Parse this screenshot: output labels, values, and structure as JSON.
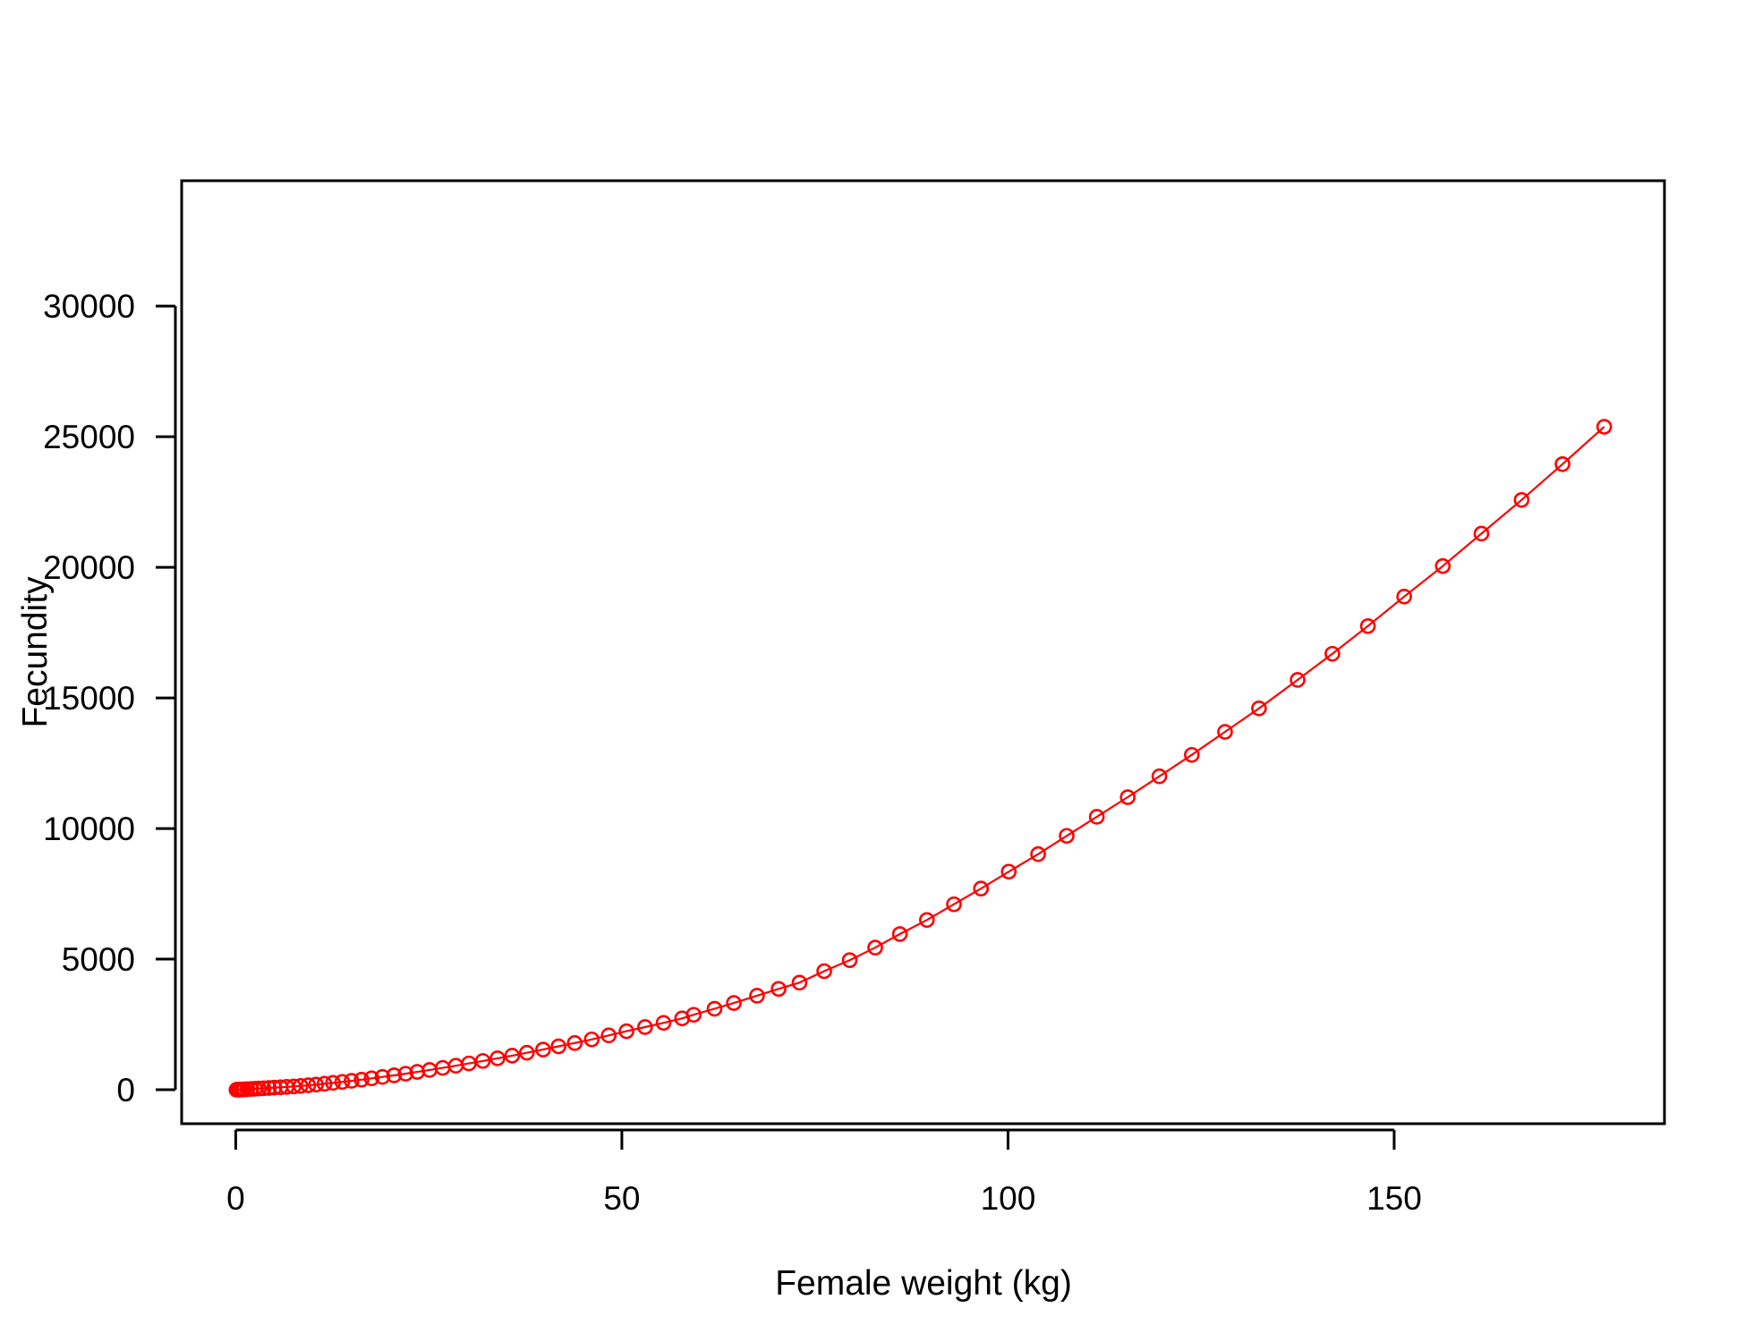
{
  "chart_data": {
    "type": "line",
    "title": "",
    "xlabel": "Female weight (kg)",
    "ylabel": "Fecundity",
    "xlim": [
      -7,
      185
    ],
    "ylim": [
      -1300,
      34800
    ],
    "x_ticks": [
      0,
      50,
      100,
      150
    ],
    "y_ticks": [
      0,
      5000,
      10000,
      15000,
      20000,
      25000,
      30000
    ],
    "x_tick_labels": [
      "0",
      "50",
      "100",
      "150"
    ],
    "y_tick_labels": [
      "0",
      "5000",
      "10000",
      "15000",
      "20000",
      "25000",
      "30000"
    ],
    "grid": false,
    "legend": "none",
    "marker": "open-circle",
    "color": "#ff0000",
    "series": [
      {
        "x": [
          0.1,
          0.3,
          0.5,
          0.8,
          1.1,
          1.5,
          2.0,
          2.5,
          3.0,
          3.6,
          4.3,
          5.0,
          5.8,
          6.6,
          7.5,
          8.4,
          9.4,
          10.4,
          11.5,
          12.6,
          13.8,
          15.0,
          16.3,
          17.6,
          19.0,
          20.5,
          22.0,
          23.5,
          25.1,
          26.8,
          28.5,
          30.2,
          32.0,
          33.9,
          35.8,
          37.7,
          39.8,
          41.8,
          43.9,
          46.1,
          48.3,
          50.6,
          53.0,
          55.4,
          57.8,
          59.3,
          62.0,
          64.5,
          67.5,
          70.3,
          73.0,
          76.2,
          79.5,
          82.8,
          86.0,
          89.5,
          93.0,
          96.5,
          100.1,
          103.9,
          107.6,
          111.5,
          115.5,
          119.6,
          123.8,
          128.1,
          132.5,
          137.5,
          142.0,
          146.6,
          151.3,
          156.3,
          161.3,
          166.5,
          171.8,
          177.2
        ],
        "y": [
          0,
          2,
          5,
          10,
          15,
          22,
          30,
          38,
          46,
          56,
          68,
          80,
          94,
          109,
          126,
          146,
          170,
          197,
          229,
          264,
          301,
          342,
          386,
          436,
          491,
          550,
          614,
          683,
          757,
          836,
          919,
          1008,
          1102,
          1203,
          1306,
          1417,
          1538,
          1662,
          1788,
          1928,
          2080,
          2240,
          2400,
          2560,
          2730,
          2870,
          3100,
          3320,
          3600,
          3860,
          4100,
          4540,
          4960,
          5440,
          5960,
          6500,
          7100,
          7700,
          8350,
          9020,
          9720,
          10450,
          11200,
          12000,
          12820,
          13700,
          14600,
          15690,
          16690,
          17750,
          18880,
          20050,
          21290,
          22580,
          23950,
          25380
        ]
      }
    ]
  }
}
